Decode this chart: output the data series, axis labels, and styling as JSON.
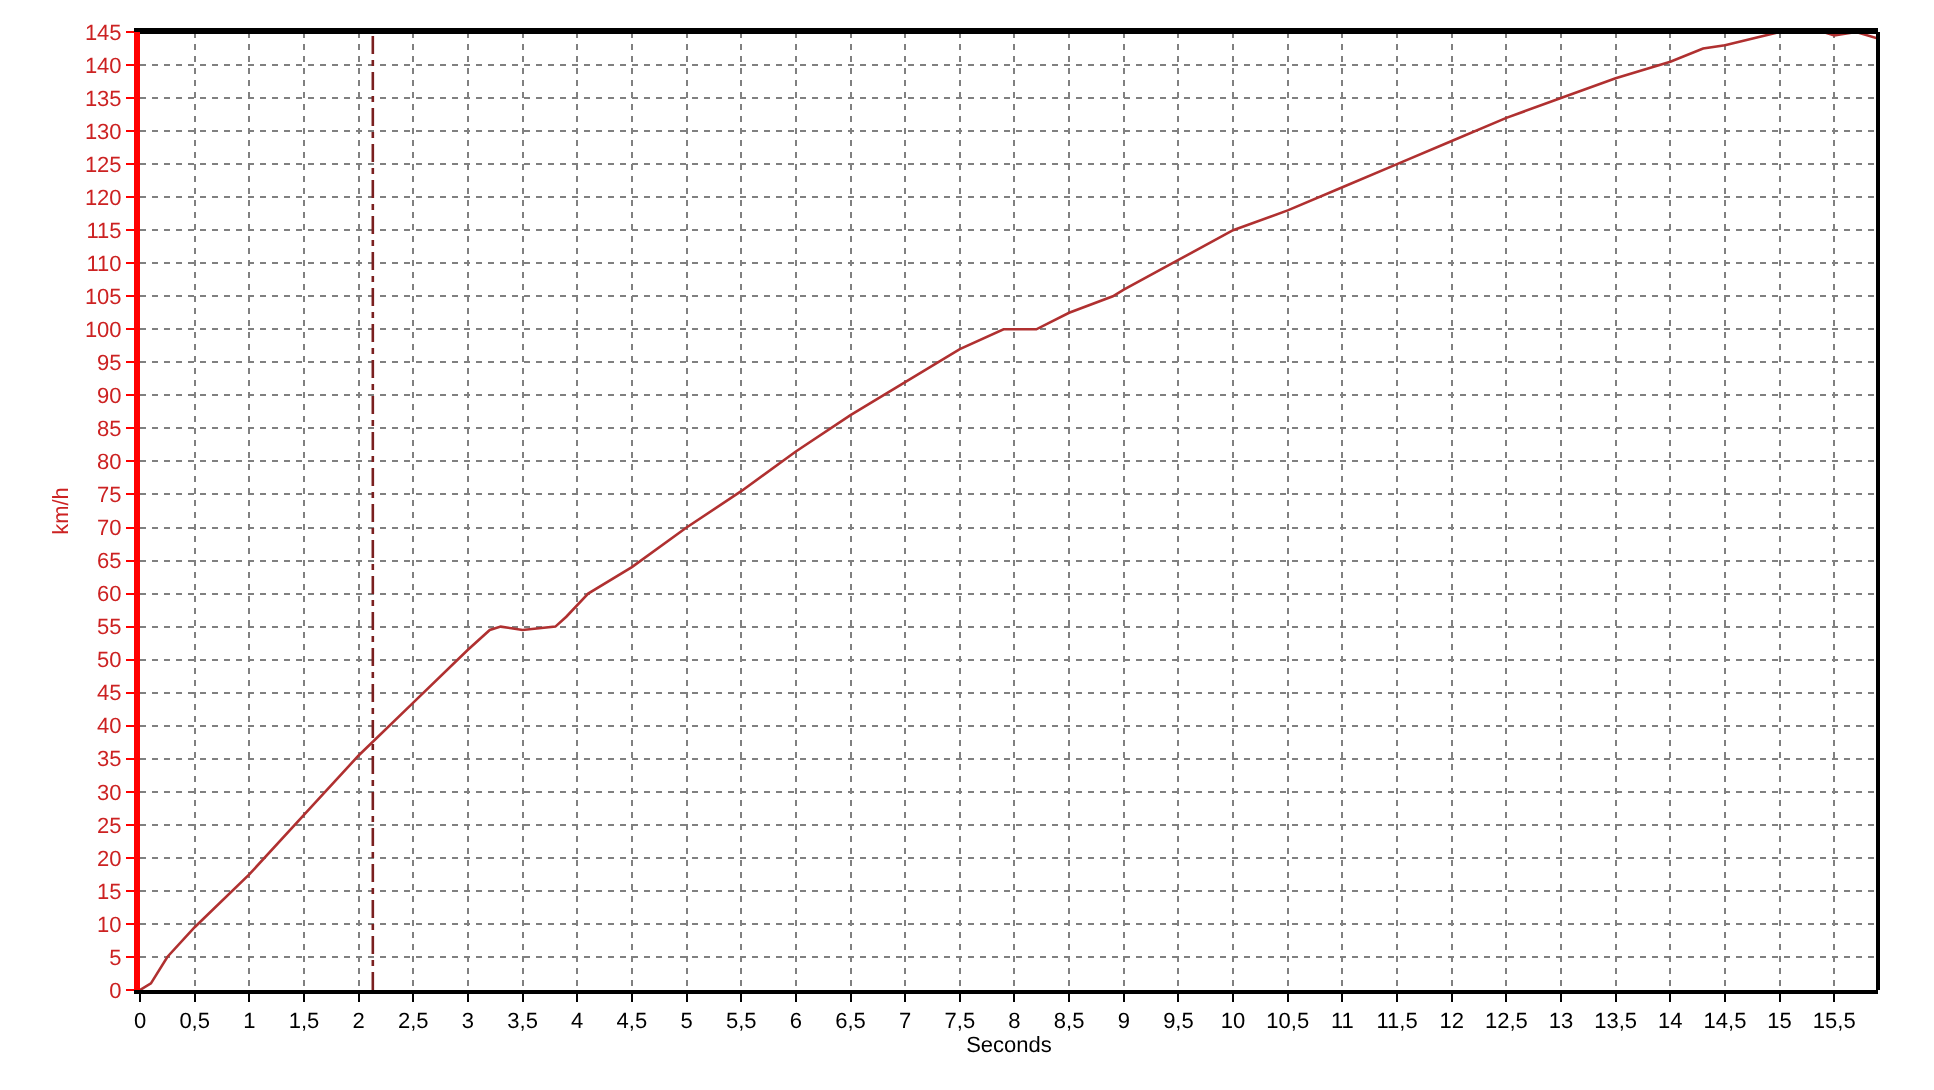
{
  "chart_data": {
    "type": "line",
    "xlabel": "Seconds",
    "ylabel": "km/h",
    "x": [
      0,
      0.1,
      0.25,
      0.5,
      1,
      1.5,
      2,
      2.5,
      3,
      3.2,
      3.3,
      3.5,
      3.8,
      3.9,
      4.1,
      4.5,
      5,
      5.5,
      6,
      6.5,
      7,
      7.5,
      7.9,
      8.2,
      8.5,
      8.9,
      9,
      9.5,
      10,
      10.5,
      11,
      11.5,
      12,
      12.5,
      13,
      13.5,
      14,
      14.3,
      14.5,
      15,
      15.4,
      15.5,
      15.7,
      15.9
    ],
    "series": [
      {
        "color": "#b03030",
        "values": [
          0,
          1,
          5,
          9.5,
          17.5,
          26.5,
          35.5,
          43.5,
          51.5,
          54.5,
          55,
          54.5,
          55,
          56.5,
          60,
          64,
          70,
          75.5,
          81.5,
          87,
          92,
          97,
          100,
          100,
          102.5,
          105,
          106,
          110.5,
          115,
          118,
          121.5,
          125,
          128.5,
          132,
          135,
          138,
          140.5,
          142.5,
          143,
          145,
          145,
          144.5,
          145,
          144
        ]
      }
    ],
    "xlim": [
      0,
      15.9
    ],
    "ylim": [
      0,
      145
    ],
    "xticks": [
      0,
      {
        "value": 0.5,
        "label": "0,5"
      },
      1,
      {
        "value": 1.5,
        "label": "1,5"
      },
      2,
      {
        "value": 2.5,
        "label": "2,5"
      },
      3,
      {
        "value": 3.5,
        "label": "3,5"
      },
      4,
      {
        "value": 4.5,
        "label": "4,5"
      },
      5,
      {
        "value": 5.5,
        "label": "5,5"
      },
      6,
      {
        "value": 6.5,
        "label": "6,5"
      },
      7,
      {
        "value": 7.5,
        "label": "7,5"
      },
      8,
      {
        "value": 8.5,
        "label": "8,5"
      },
      9,
      {
        "value": 9.5,
        "label": "9,5"
      },
      10,
      {
        "value": 10.5,
        "label": "10,5"
      },
      11,
      {
        "value": 11.5,
        "label": "11,5"
      },
      12,
      {
        "value": 12.5,
        "label": "12,5"
      },
      13,
      {
        "value": 13.5,
        "label": "13,5"
      },
      14,
      {
        "value": 14.5,
        "label": "14,5"
      },
      15,
      {
        "value": 15.5,
        "label": "15,5"
      }
    ],
    "yticks": [
      0,
      5,
      10,
      15,
      20,
      25,
      30,
      35,
      40,
      45,
      50,
      55,
      60,
      65,
      70,
      75,
      80,
      85,
      90,
      95,
      100,
      105,
      110,
      115,
      120,
      125,
      130,
      135,
      140,
      145
    ],
    "ref_lines": [
      {
        "axis": "x",
        "value": 2.13,
        "label": null,
        "color": "#7a1f1f",
        "line_style": "dashdot"
      }
    ],
    "grid": true,
    "marker": "none",
    "line_style": "solid"
  }
}
